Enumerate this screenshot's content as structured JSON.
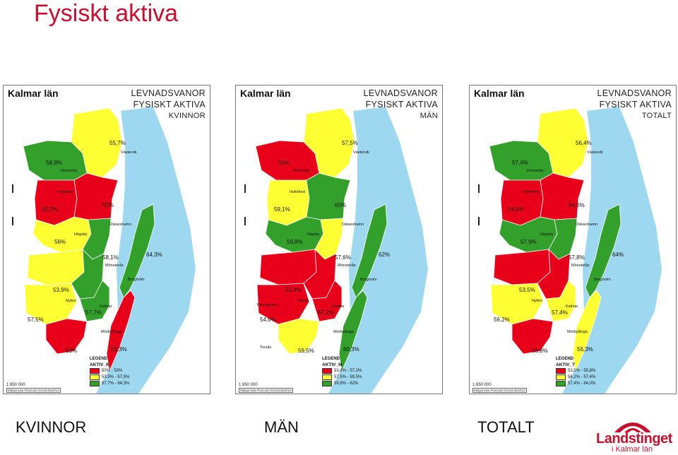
{
  "title": "Fysiskt aktiva",
  "panels": [
    {
      "region": "Kalmar län",
      "head1": "LEVNADSVANOR",
      "head2": "FYSISKT AKTIVA",
      "head3": "KVINNOR",
      "labels": {
        "vastervik_val": "55,7%",
        "vastervik_name": "Västervik",
        "vimmerby_val": "58,9%",
        "vimmerby_name": "Vimmerby",
        "hultsfred_name": "Hultsfred",
        "hultsfred_val": "50,2%",
        "oskarshamn_val": "50%",
        "oskarshamn_name": "Oskarshamn",
        "hogsby_name": "Högsby",
        "hogsby_val": "56%",
        "monsteras_val": "58,1%",
        "monsteras_name": "Mönsterås",
        "borgholm_val": "64,3%",
        "borgholm_name": "Borgholm",
        "emmaboda_val": "53,9%",
        "nybro_name": "Nybro",
        "kalmar_name": "Kalmar",
        "kalmar_val": "57,7%",
        "torsas_val": "57,5%",
        "morbylanga_name": "Mörbylånga",
        "torsas2_val": "53%",
        "morbylanga_val": "52,3%"
      },
      "legend": {
        "title": "LEGEND",
        "field": "AKTIV_K",
        "ranges": [
          "50% - 53%",
          "53,9% - 57,5%",
          "57,7% - 64,3%"
        ]
      },
      "scale": "1:850 000",
      "credit": "Malgorzata Ploszuta-Grzesinka2013",
      "colors": [
        "#e8001b",
        "#ffff33",
        "#33a02c",
        "#e8001b",
        "#33a02c",
        "#33a02c",
        "#ffff33",
        "#33a02c",
        "#ffff33",
        "#33a02c",
        "#ffff33",
        "#e8001b",
        "#e8001b"
      ]
    },
    {
      "region": "Kalmar län",
      "head1": "LEVNADSVANOR",
      "head2": "FYSISKT AKTIVA",
      "head3": "MÄN",
      "labels": {
        "vastervik_val": "57,5%",
        "vastervik_name": "Västervik",
        "vimmerby_val": "55%",
        "vimmerby_name": "Vimmerby",
        "hultsfred_name": "Hultsfred",
        "hultsfred_val": "59,1%",
        "oskarshamn_val": "60%",
        "oskarshamn_name": "Oskarshamn",
        "hogsby_name": "Högsby",
        "hogsby_val": "59,8%",
        "monsteras_val": "57,6%",
        "monsteras_name": "Mönsterås",
        "borgholm_val": "62%",
        "borgholm_name": "Borgholm",
        "emmaboda_val": "53,4%",
        "nybro_name": "Nybro",
        "kalmar_name": "Kalmar",
        "kalmar_val": "57,2%",
        "torsas_val": "54,6%",
        "morbylanga_name": "Mörbylånga",
        "torsas2_val": "59,5%",
        "morbylanga_val": "60,3%"
      },
      "extra": {
        "emmaboda_name": "Emmaboda",
        "torsas_name": "Torsås"
      },
      "legend": {
        "title": "LEGEND",
        "field": "AKTIV_M",
        "ranges": [
          "53,4% - 57,2%",
          "57,5% - 59,5%",
          "59,8% - 62%"
        ]
      },
      "scale": "1:850 000",
      "credit": "Malgorzata Ploszuta-Grzesinka2013",
      "colors": [
        "#ffff33",
        "#e8001b",
        "#ffff33",
        "#33a02c",
        "#33a02c",
        "#ffff33",
        "#33a02c",
        "#e8001b",
        "#e8001b",
        "#ffff33",
        "#e8001b",
        "#ffff33",
        "#33a02c"
      ]
    },
    {
      "region": "Kalmar län",
      "head1": "LEVNADSVANOR",
      "head2": "FYSISKT AKTIVA",
      "head3": "TOTALT",
      "labels": {
        "vastervik_val": "56,4%",
        "vastervik_name": "Västervik",
        "vimmerby_val": "57,4%",
        "vimmerby_name": "Vimmerby",
        "hultsfred_name": "Hultsfred",
        "hultsfred_val": "54,6%",
        "oskarshamn_val": "54,6%",
        "oskarshamn_name": "Oskarshamn",
        "hogsby_name": "Högsby",
        "hogsby_val": "57,9%",
        "monsteras_val": "57,8%",
        "monsteras_name": "Mönsterås",
        "borgholm_val": "64%",
        "borgholm_name": "Borgholm",
        "emmaboda_val": "53,5%",
        "nybro_name": "Nybro",
        "kalmar_name": "Kalmar",
        "kalmar_val": "57,4%",
        "torsas_val": "56,2%",
        "morbylanga_name": "Mörbylånga",
        "torsas2_val": "55,8%",
        "morbylanga_val": "56,3%"
      },
      "legend": {
        "title": "LEGEND",
        "field": "AKTIV_T",
        "ranges": [
          "53,5% - 55,8%",
          "56,2% - 57,4%",
          "57,4% - 64,0%"
        ]
      },
      "scale": "1:850 000",
      "credit": "Malgorzata Ploszuta-Grzesinka2013",
      "colors": [
        "#ffff33",
        "#33a02c",
        "#e8001b",
        "#e8001b",
        "#33a02c",
        "#33a02c",
        "#33a02c",
        "#e8001b",
        "#ffff33",
        "#ffff33",
        "#ffff33",
        "#e8001b",
        "#ffff33"
      ]
    }
  ],
  "captions": [
    "KVINNOR",
    "MÄN",
    "TOTALT"
  ],
  "logo": {
    "line1": "Landstinget",
    "line2": "i Kalmar län",
    "color": "#c8102e"
  },
  "legend_colors": [
    "#e8001b",
    "#ffff33",
    "#33a02c"
  ],
  "sea_color": "#9dd8f0"
}
